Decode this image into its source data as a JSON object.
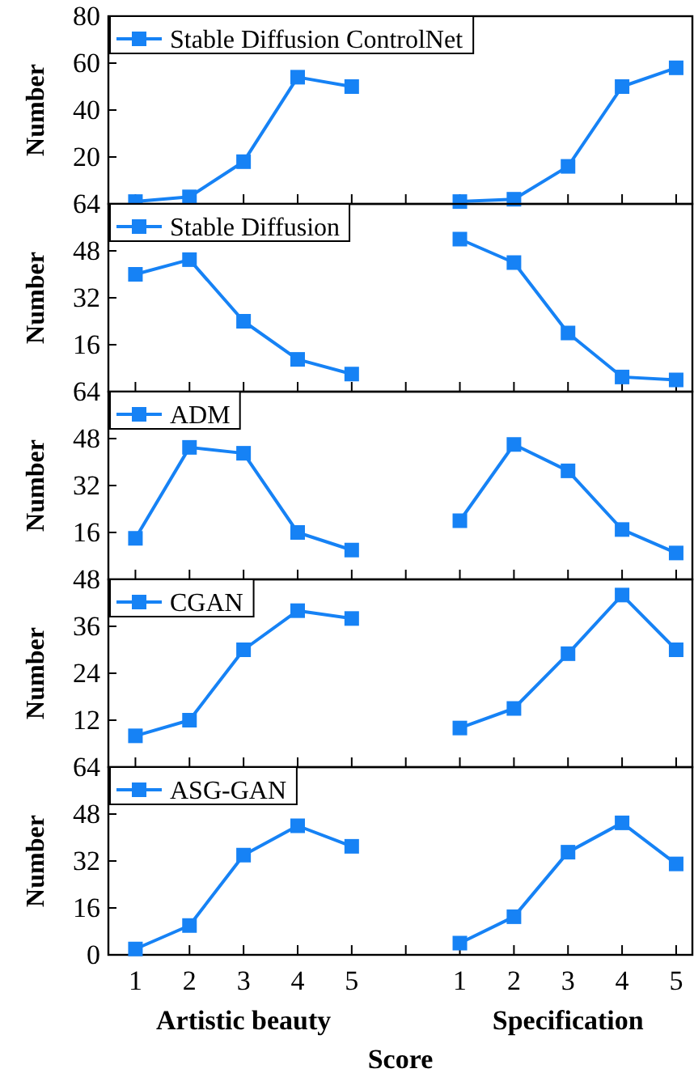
{
  "chart_data": [
    {
      "type": "line",
      "categories": [
        "1",
        "2",
        "3",
        "4",
        "5",
        null,
        "1",
        "2",
        "3",
        "4",
        "5"
      ],
      "ylabel": "Number",
      "ylim": [
        0,
        80
      ],
      "yticks": [
        20,
        40,
        60,
        80
      ],
      "tick_labels": "y",
      "legend": "top left",
      "marker": "square",
      "line_style": "solid",
      "series": [
        {
          "name": "Stable Diffusion ControlNet",
          "color": "#1682f5",
          "values": [
            1,
            3,
            18,
            54,
            50,
            null,
            1,
            2,
            16,
            50,
            58
          ]
        }
      ]
    },
    {
      "type": "line",
      "categories": [
        "1",
        "2",
        "3",
        "4",
        "5",
        null,
        "1",
        "2",
        "3",
        "4",
        "5"
      ],
      "ylabel": "Number",
      "ylim": [
        0,
        64
      ],
      "yticks": [
        16,
        32,
        48,
        64
      ],
      "tick_labels": "y",
      "legend": "top left",
      "marker": "square",
      "line_style": "solid",
      "series": [
        {
          "name": "Stable Diffusion",
          "color": "#1682f5",
          "values": [
            40,
            45,
            24,
            11,
            6,
            null,
            52,
            44,
            20,
            5,
            4
          ]
        }
      ]
    },
    {
      "type": "line",
      "categories": [
        "1",
        "2",
        "3",
        "4",
        "5",
        null,
        "1",
        "2",
        "3",
        "4",
        "5"
      ],
      "ylabel": "Number",
      "ylim": [
        0,
        64
      ],
      "yticks": [
        16,
        32,
        48,
        64
      ],
      "tick_labels": "y",
      "legend": "top left",
      "marker": "square",
      "line_style": "solid",
      "series": [
        {
          "name": "ADM",
          "color": "#1682f5",
          "values": [
            14,
            45,
            43,
            16,
            10,
            null,
            20,
            46,
            37,
            17,
            9
          ]
        }
      ]
    },
    {
      "type": "line",
      "categories": [
        "1",
        "2",
        "3",
        "4",
        "5",
        null,
        "1",
        "2",
        "3",
        "4",
        "5"
      ],
      "ylabel": "Number",
      "ylim": [
        0,
        48
      ],
      "yticks": [
        12,
        24,
        36,
        48
      ],
      "tick_labels": "y",
      "legend": "top left",
      "marker": "square",
      "line_style": "solid",
      "series": [
        {
          "name": "CGAN",
          "color": "#1682f5",
          "values": [
            8,
            12,
            30,
            40,
            38,
            null,
            10,
            15,
            29,
            44,
            30
          ]
        }
      ]
    },
    {
      "type": "line",
      "categories": [
        "1",
        "2",
        "3",
        "4",
        "5",
        null,
        "1",
        "2",
        "3",
        "4",
        "5"
      ],
      "ylabel": "Number",
      "xlabel": "Score",
      "annotations": [
        "Artistic beauty",
        "Specification"
      ],
      "ylim": [
        0,
        64
      ],
      "yticks": [
        0,
        16,
        32,
        48,
        64
      ],
      "legend": "top left",
      "marker": "square",
      "line_style": "solid",
      "series": [
        {
          "name": "ASG-GAN",
          "color": "#1682f5",
          "values": [
            2,
            10,
            34,
            44,
            37,
            null,
            4,
            13,
            35,
            45,
            31
          ]
        }
      ]
    }
  ]
}
